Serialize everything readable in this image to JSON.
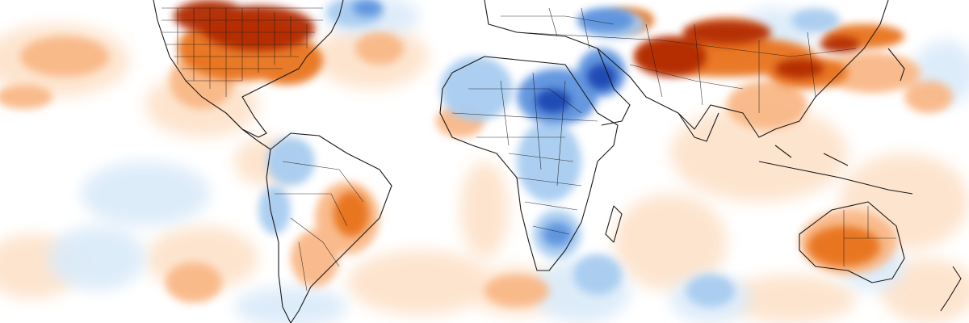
{
  "map": {
    "type": "temperature-anomaly-map",
    "projection": "equirectangular",
    "colors": {
      "background": "#ffffff",
      "strong_warm": "#b22a05",
      "warm": "#e8731c",
      "mild_warm": "#f9b887",
      "faint_warm": "#fde3cc",
      "faint_cool": "#dcebf9",
      "mild_cool": "#a8ccf0",
      "cool": "#5d93de",
      "strong_cool": "#1f46b3",
      "coastline": "#1a1a1a"
    },
    "legend": "none",
    "labels": []
  }
}
